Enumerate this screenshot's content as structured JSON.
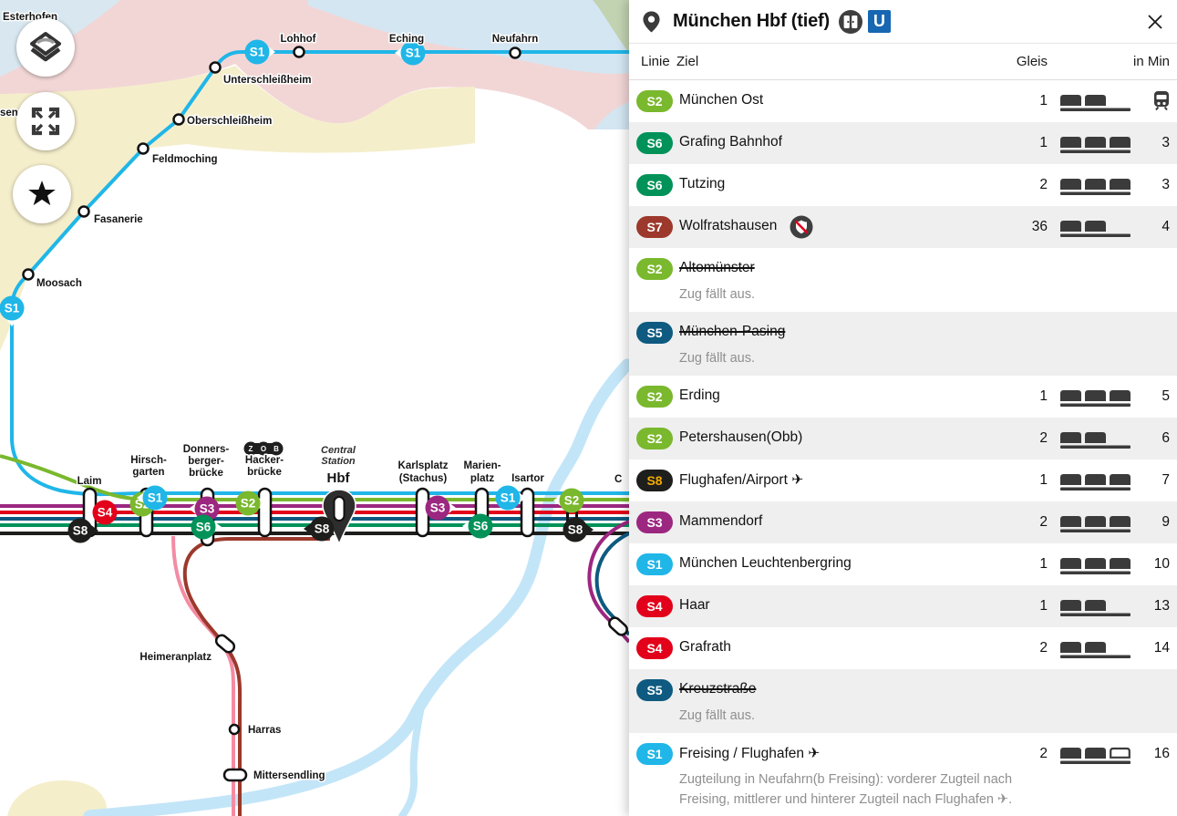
{
  "lines": {
    "S1": {
      "label": "S1",
      "color": "#20b6e8"
    },
    "S2": {
      "label": "S2",
      "color": "#7ab82d"
    },
    "S3": {
      "label": "S3",
      "color": "#9c2780"
    },
    "S4": {
      "label": "S4",
      "color": "#e2001a"
    },
    "S5": {
      "label": "S5",
      "color": "#0e5a80"
    },
    "S6": {
      "label": "S6",
      "color": "#009259"
    },
    "S7": {
      "label": "S7",
      "color": "#9c392c"
    },
    "S8": {
      "label": "S8",
      "color": "#1e1e1c",
      "text_color": "#f2ab00"
    },
    "S20": {
      "color": "#f48ba4"
    }
  },
  "panel": {
    "title": "München Hbf (tief)",
    "ubahn_label": "U",
    "columns": {
      "line": "Linie",
      "destination": "Ziel",
      "platform": "Gleis",
      "minutes": "in Min"
    },
    "departures": [
      {
        "line": "S2",
        "destination": "München Ost",
        "platform": "1",
        "cars": 2,
        "departing_now": true
      },
      {
        "line": "S6",
        "destination": "Grafing Bahnhof",
        "platform": "1",
        "cars": 3,
        "minutes": "3"
      },
      {
        "line": "S6",
        "destination": "Tutzing",
        "platform": "2",
        "cars": 3,
        "minutes": "3"
      },
      {
        "line": "S7",
        "destination": "Wolfratshausen",
        "warning": true,
        "platform": "36",
        "cars": 2,
        "minutes": "4"
      },
      {
        "line": "S2",
        "destination": "Altomünster",
        "cancelled": true,
        "note": "Zug fällt aus."
      },
      {
        "line": "S5",
        "destination": "München-Pasing",
        "cancelled": true,
        "note": "Zug fällt aus."
      },
      {
        "line": "S2",
        "destination": "Erding",
        "platform": "1",
        "cars": 3,
        "minutes": "5"
      },
      {
        "line": "S2",
        "destination": "Petershausen(Obb)",
        "platform": "2",
        "cars": 2,
        "minutes": "6"
      },
      {
        "line": "S8",
        "destination": "Flughafen/Airport ✈",
        "platform": "1",
        "cars": 3,
        "minutes": "7"
      },
      {
        "line": "S3",
        "destination": "Mammendorf",
        "platform": "2",
        "cars": 3,
        "minutes": "9"
      },
      {
        "line": "S1",
        "destination": "München Leuchtenbergring",
        "platform": "1",
        "cars": 3,
        "minutes": "10"
      },
      {
        "line": "S4",
        "destination": "Haar",
        "platform": "1",
        "cars": 2,
        "minutes": "13"
      },
      {
        "line": "S4",
        "destination": "Grafrath",
        "platform": "2",
        "cars": 2,
        "minutes": "14"
      },
      {
        "line": "S5",
        "destination": "Kreuzstraße",
        "cancelled": true,
        "note": "Zug fällt aus."
      },
      {
        "line": "S1",
        "destination": "Freising / Flughafen ✈",
        "platform": "2",
        "cars": 2,
        "cars_outline": 1,
        "minutes": "16",
        "note": "Zugteilung in Neufahrn(b Freising): vorderer Zugteil nach Freising, mittlerer und hinterer Zugteil nach Flughafen ✈."
      }
    ]
  },
  "map": {
    "stations": {
      "esterhofen": "Esterhofen",
      "west_partial": "sen",
      "lohhof": "Lohhof",
      "eching": "Eching",
      "neufahrn": "Neufahrn",
      "unterschleissheim": "Unterschleißheim",
      "oberschleissheim": "Oberschleißheim",
      "feldmoching": "Feldmoching",
      "fasanerie": "Fasanerie",
      "moosach": "Moosach",
      "laim": "Laim",
      "hirschgarten": [
        "Hirsch-",
        "garten"
      ],
      "donnersbergerbruecke": [
        "Donners-",
        "berger-",
        "brücke"
      ],
      "hackerbruecke": [
        "Hacker-",
        "brücke"
      ],
      "central": [
        "Central",
        "Station"
      ],
      "hbf": "Hbf",
      "karlsplatz": [
        "Karlsplatz",
        "(Stachus)"
      ],
      "marienplatz": [
        "Marien-",
        "platz"
      ],
      "isartor": "Isartor",
      "east_partial": "C",
      "heimeranplatz": "Heimeranplatz",
      "harras": "Harras",
      "mittersendling": "Mittersendling"
    },
    "zob": [
      "Z",
      "O",
      "B"
    ]
  }
}
